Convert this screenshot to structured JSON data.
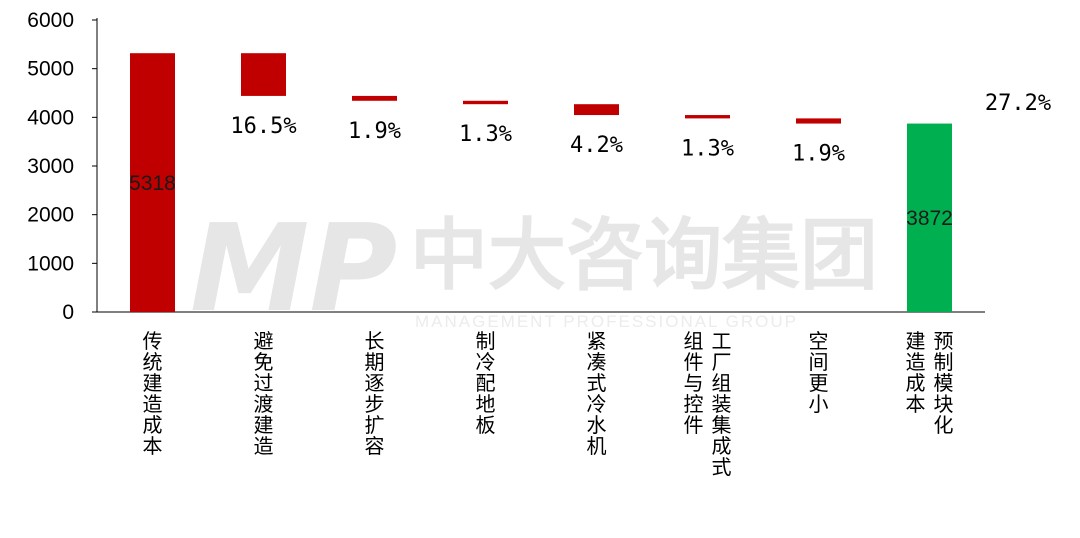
{
  "chart_data": {
    "type": "bar",
    "subtype": "waterfall",
    "ylim": [
      0,
      6000
    ],
    "yticks": [
      0,
      1000,
      2000,
      3000,
      4000,
      5000,
      6000
    ],
    "categories": [
      [
        "传统建造成本"
      ],
      [
        "避免过渡建造"
      ],
      [
        "长期逐步扩容"
      ],
      [
        "制冷配地板"
      ],
      [
        "紧凑式冷水机"
      ],
      [
        "工厂组装集成式",
        "组件与控件"
      ],
      [
        "空间更小"
      ],
      [
        "预制模块化",
        "建造成本"
      ]
    ],
    "bars": [
      {
        "kind": "total",
        "start": 0,
        "end": 5318,
        "value_label": "5318",
        "pct_label": ""
      },
      {
        "kind": "decrease",
        "start": 4440,
        "end": 5318,
        "value_label": "",
        "pct_label": "16.5%"
      },
      {
        "kind": "decrease",
        "start": 4340,
        "end": 4440,
        "value_label": "",
        "pct_label": "1.9%"
      },
      {
        "kind": "decrease",
        "start": 4270,
        "end": 4340,
        "value_label": "",
        "pct_label": "1.3%"
      },
      {
        "kind": "decrease",
        "start": 4047,
        "end": 4270,
        "value_label": "",
        "pct_label": "4.2%"
      },
      {
        "kind": "decrease",
        "start": 3978,
        "end": 4047,
        "value_label": "",
        "pct_label": "1.3%"
      },
      {
        "kind": "decrease",
        "start": 3872,
        "end": 3978,
        "value_label": "",
        "pct_label": "1.9%"
      },
      {
        "kind": "total",
        "start": 0,
        "end": 3872,
        "value_label": "3872",
        "pct_label": ""
      }
    ],
    "total_saving_label": "27.2%",
    "grid": false,
    "legend": "none"
  },
  "colors": {
    "decrease": "#c00000",
    "total_start": "#c00000",
    "total_end": "#00b050",
    "axis": "#000000"
  },
  "watermark": {
    "logo": "MP",
    "text_cn": "中大咨询集团",
    "text_en": "MANAGEMENT PROFESSIONAL GROUP"
  }
}
